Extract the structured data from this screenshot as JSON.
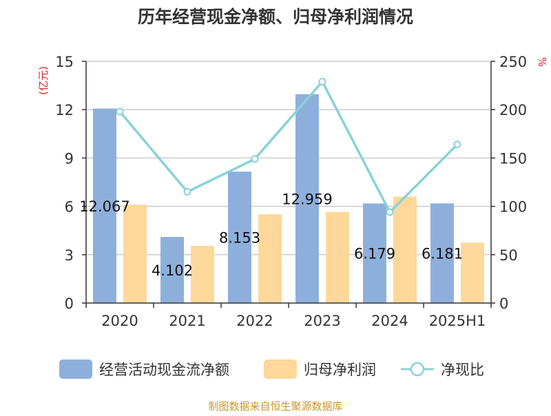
{
  "chart_data": {
    "type": "bar",
    "title": "历年经营现金净额、归母净利润情况",
    "y_left_unit": "(亿元)",
    "y_right_unit": "%",
    "ylim_left": [
      0,
      15
    ],
    "yticks_left": [
      0,
      3,
      6,
      9,
      12,
      15
    ],
    "ylim_right": [
      0,
      250
    ],
    "yticks_right": [
      0,
      50,
      100,
      150,
      200,
      250
    ],
    "grid": true,
    "legend_position": "bottom",
    "categories": [
      "2020",
      "2021",
      "2022",
      "2023",
      "2024",
      "2025H1"
    ],
    "series": [
      {
        "name": "经营活动现金流净额",
        "type": "bar",
        "axis": "left",
        "color": "#8EAFDB",
        "values": [
          12.067,
          4.102,
          8.153,
          12.959,
          6.179,
          6.181
        ],
        "data_labels": [
          "12.067",
          "4.102",
          "8.153",
          "12.959",
          "6.179",
          "6.181"
        ]
      },
      {
        "name": "归母净利润",
        "type": "bar",
        "axis": "left",
        "color": "#FDD89A",
        "values": [
          6.1,
          3.55,
          5.5,
          5.65,
          6.6,
          3.75
        ]
      },
      {
        "name": "净现比",
        "type": "line",
        "axis": "right",
        "color": "#88D2D8",
        "values": [
          198,
          115,
          149,
          229,
          94,
          164
        ]
      }
    ]
  },
  "footer": {
    "source_text": "制图数据来自恒生聚源数据库",
    "source_color": "#C8962C"
  }
}
